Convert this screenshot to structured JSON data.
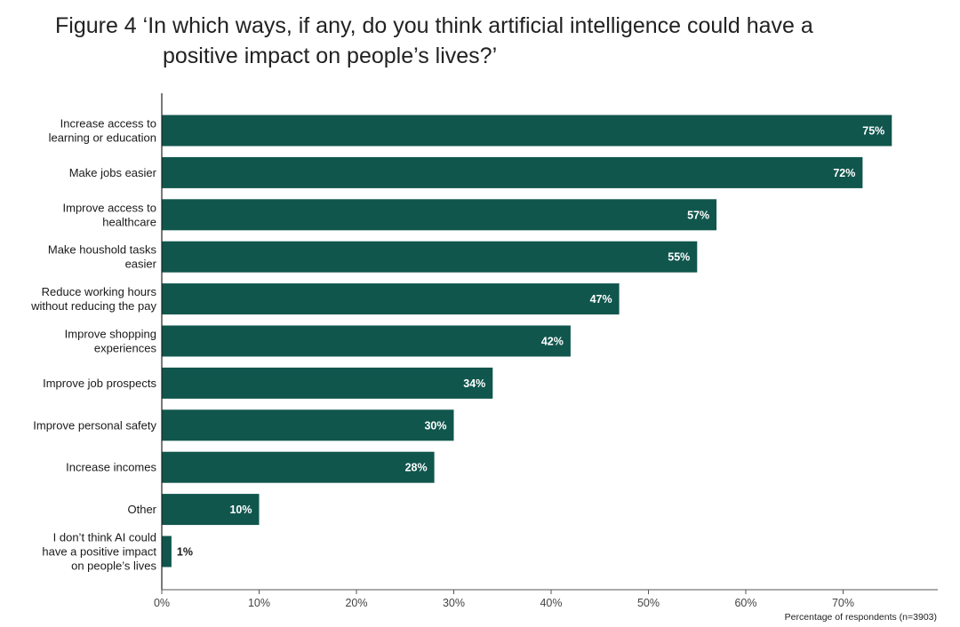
{
  "figure_label": "Figure 4",
  "chart_data": {
    "type": "bar",
    "orientation": "horizontal",
    "title_line1": "‘In which ways, if any, do you think artificial intelligence could have a",
    "title_line2": "positive impact on people’s lives?’",
    "xlabel": "Percentage of respondents (n=3903)",
    "ylabel": "",
    "xlim": [
      0,
      80
    ],
    "x_ticks": [
      0,
      10,
      20,
      30,
      40,
      50,
      60,
      70
    ],
    "x_tick_labels": [
      "0%",
      "10%",
      "20%",
      "30%",
      "40%",
      "50%",
      "60%",
      "70%"
    ],
    "grid": false,
    "legend": "none",
    "bar_color": "#10564d",
    "categories": [
      [
        "Increase access to",
        "learning or education"
      ],
      [
        "Make jobs easier"
      ],
      [
        "Improve access to",
        "healthcare"
      ],
      [
        "Make houshold tasks",
        "easier"
      ],
      [
        "Reduce working hours",
        "without reducing the pay"
      ],
      [
        "Improve shopping",
        "experiences"
      ],
      [
        "Improve job prospects"
      ],
      [
        "Improve personal safety"
      ],
      [
        "Increase incomes"
      ],
      [
        "Other"
      ],
      [
        "I don’t think AI could",
        "have a positive impact",
        "on people’s lives"
      ]
    ],
    "values": [
      75,
      72,
      57,
      55,
      47,
      42,
      34,
      30,
      28,
      10,
      1
    ],
    "value_labels": [
      "75%",
      "72%",
      "57%",
      "55%",
      "47%",
      "42%",
      "34%",
      "30%",
      "28%",
      "10%",
      "1%"
    ]
  }
}
